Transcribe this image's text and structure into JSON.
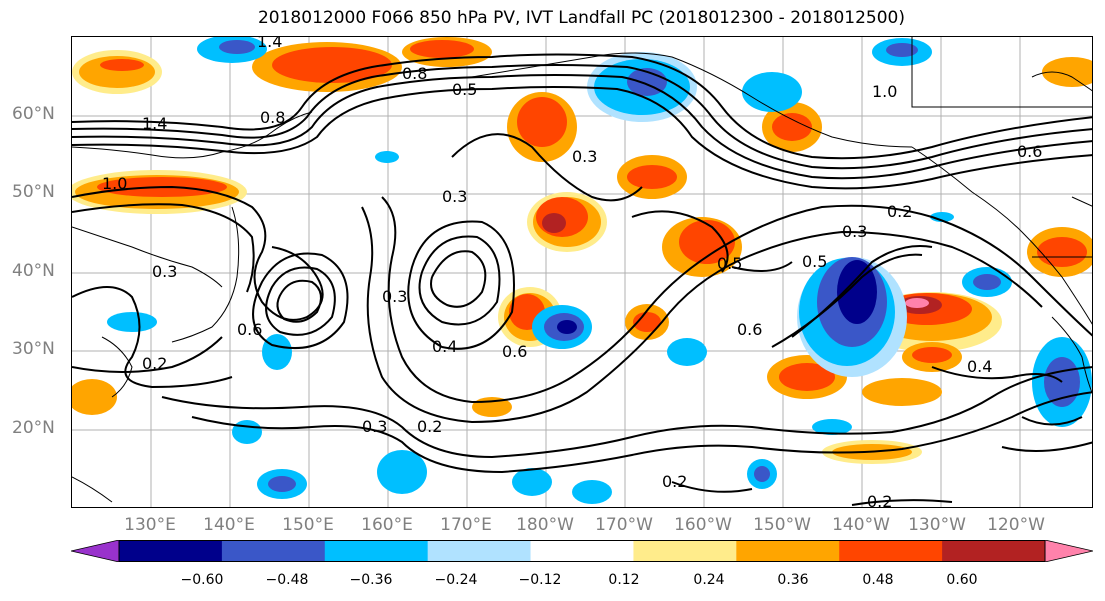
{
  "title": "2018012000 F066 850 hPa PV, IVT Landfall PC (2018012300 - 2018012500)",
  "lat_labels": [
    "60°N",
    "50°N",
    "40°N",
    "30°N",
    "20°N"
  ],
  "lon_labels": [
    "130°E",
    "140°E",
    "150°E",
    "160°E",
    "170°E",
    "180°W",
    "170°W",
    "160°W",
    "150°W",
    "140°W",
    "130°W",
    "120°W"
  ],
  "contour_labels": [
    "1.4",
    "0.8",
    "1.0",
    "0.5",
    "0.8",
    "1.4",
    "1.0",
    "0.3",
    "0.3",
    "0.3",
    "0.2",
    "0.6",
    "0.3",
    "0.5",
    "0.5",
    "0.6",
    "0.6",
    "0.4",
    "0.2",
    "0.3",
    "0.2",
    "0.2",
    "0.4",
    "0.2",
    "0.6",
    "0.3"
  ],
  "colorbar": {
    "ticks": [
      "−0.60",
      "−0.48",
      "−0.36",
      "−0.24",
      "−0.12",
      "0.12",
      "0.24",
      "0.36",
      "0.48",
      "0.60"
    ],
    "colors": [
      "#9932cc",
      "#00008b",
      "#3a57c8",
      "#00bfff",
      "#b0e2ff",
      "#ffffff",
      "#ffec8b",
      "#ffa500",
      "#ff4500",
      "#b22222",
      "#ff82ab"
    ]
  }
}
